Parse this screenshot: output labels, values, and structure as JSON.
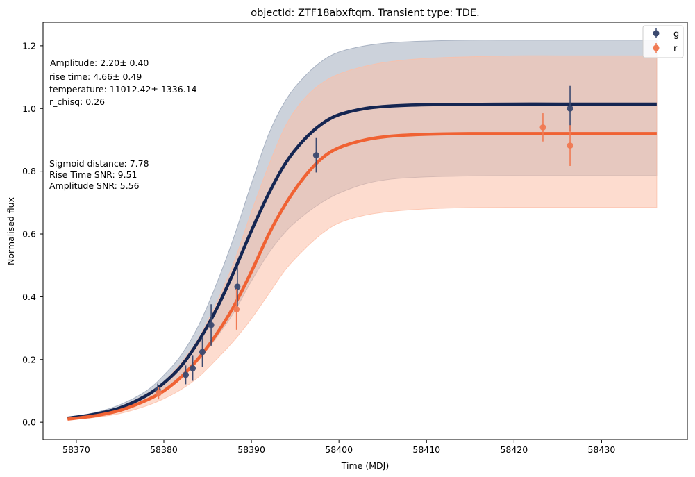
{
  "chart_data": {
    "type": "line",
    "title": "objectId: ZTF18abxftqm. Transient type: TDE.",
    "xlabel": "Time (MDJ)",
    "ylabel": "Normalised flux",
    "xlim": [
      58366.2,
      58439.8
    ],
    "ylim": [
      -0.055,
      1.275
    ],
    "xticks": [
      58370,
      58380,
      58390,
      58400,
      58410,
      58420,
      58430
    ],
    "yticks": [
      0.0,
      0.2,
      0.4,
      0.6,
      0.8,
      1.0,
      1.2
    ],
    "grid": false,
    "legend_position": "top-right",
    "annotations": [
      "Amplitude: 2.20± 0.40",
      "rise time: 4.66± 0.49",
      "temperature: 11012.42± 1336.14",
      "r_chisq: 0.26",
      "Sigmoid distance: 7.78",
      "Rise Time SNR: 9.51",
      "Amplitude SNR: 5.56"
    ],
    "model_x": [
      58369,
      58372,
      58375,
      58378,
      58380,
      58382,
      58384,
      58386,
      58388,
      58390,
      58392,
      58394,
      58396,
      58398,
      58400,
      58403,
      58406,
      58410,
      58415,
      58420,
      58425,
      58430,
      58436.3
    ],
    "series": [
      {
        "name": "g",
        "color": "#152652",
        "band_color": "#9aa5b8",
        "model_y": [
          0.013,
          0.025,
          0.046,
          0.085,
          0.125,
          0.18,
          0.26,
          0.36,
          0.48,
          0.61,
          0.73,
          0.83,
          0.9,
          0.95,
          0.98,
          1.0,
          1.008,
          1.012,
          1.013,
          1.014,
          1.014,
          1.014,
          1.014
        ],
        "band_upper": [
          0.016,
          0.03,
          0.056,
          0.1,
          0.15,
          0.215,
          0.31,
          0.44,
          0.59,
          0.76,
          0.92,
          1.03,
          1.1,
          1.15,
          1.18,
          1.2,
          1.21,
          1.215,
          1.218,
          1.218,
          1.218,
          1.218,
          1.218
        ],
        "band_lower": [
          0.011,
          0.021,
          0.039,
          0.07,
          0.1,
          0.145,
          0.2,
          0.27,
          0.35,
          0.45,
          0.54,
          0.61,
          0.66,
          0.7,
          0.73,
          0.76,
          0.775,
          0.782,
          0.785,
          0.786,
          0.786,
          0.786,
          0.786
        ],
        "points": [
          {
            "x": 58379.3,
            "y": 0.103,
            "err": 0.02
          },
          {
            "x": 58382.5,
            "y": 0.151,
            "err": 0.03
          },
          {
            "x": 58383.3,
            "y": 0.172,
            "err": 0.04
          },
          {
            "x": 58384.4,
            "y": 0.224,
            "err": 0.048
          },
          {
            "x": 58385.4,
            "y": 0.31,
            "err": 0.066
          },
          {
            "x": 58388.4,
            "y": 0.432,
            "err": 0.063
          },
          {
            "x": 58397.4,
            "y": 0.851,
            "err": 0.055
          },
          {
            "x": 58426.4,
            "y": 1.0,
            "err": 0.072
          }
        ]
      },
      {
        "name": "r",
        "color": "#f06233",
        "band_color": "#fcbfa8",
        "model_y": [
          0.01,
          0.02,
          0.038,
          0.07,
          0.1,
          0.145,
          0.205,
          0.28,
          0.37,
          0.48,
          0.6,
          0.7,
          0.78,
          0.84,
          0.875,
          0.9,
          0.912,
          0.918,
          0.92,
          0.92,
          0.92,
          0.92,
          0.92
        ],
        "band_upper": [
          0.013,
          0.027,
          0.05,
          0.09,
          0.13,
          0.19,
          0.27,
          0.38,
          0.51,
          0.67,
          0.82,
          0.95,
          1.03,
          1.08,
          1.11,
          1.135,
          1.15,
          1.16,
          1.165,
          1.168,
          1.168,
          1.168,
          1.168
        ],
        "band_lower": [
          0.008,
          0.015,
          0.028,
          0.052,
          0.075,
          0.105,
          0.145,
          0.2,
          0.26,
          0.33,
          0.41,
          0.49,
          0.55,
          0.6,
          0.635,
          0.66,
          0.672,
          0.68,
          0.684,
          0.685,
          0.685,
          0.685,
          0.685
        ],
        "points": [
          {
            "x": 58379.4,
            "y": 0.093,
            "err": 0.02
          },
          {
            "x": 58388.3,
            "y": 0.36,
            "err": 0.065
          },
          {
            "x": 58423.3,
            "y": 0.94,
            "err": 0.045
          },
          {
            "x": 58426.4,
            "y": 0.882,
            "err": 0.065
          }
        ]
      }
    ]
  }
}
